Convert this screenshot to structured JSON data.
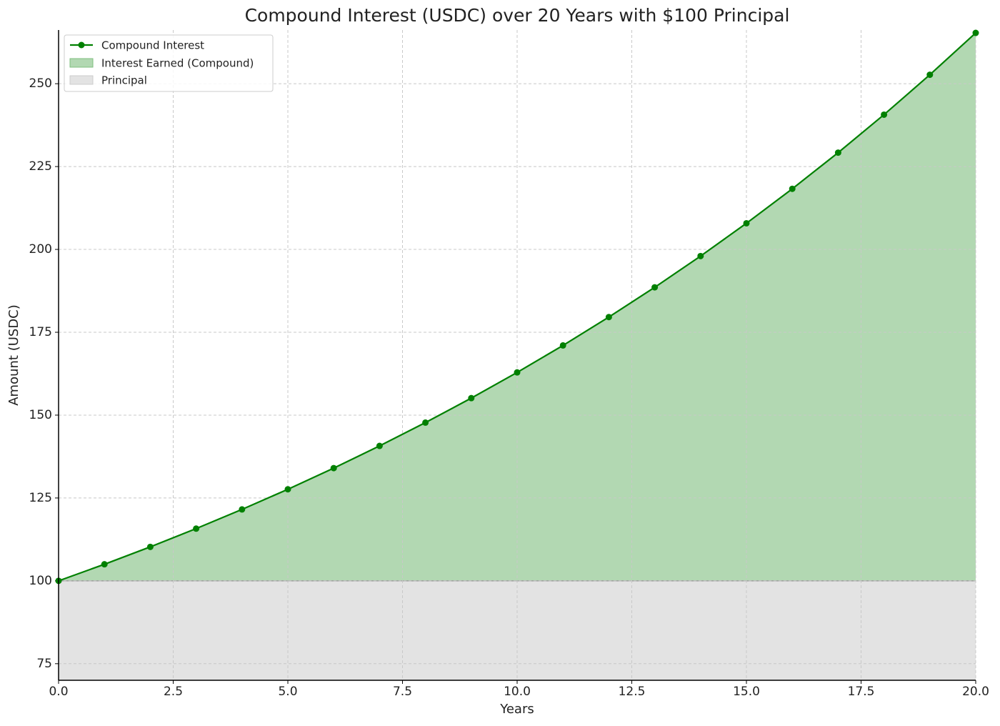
{
  "chart_data": {
    "type": "area-line",
    "title": "Compound Interest (USDC) over 20 Years with $100 Principal",
    "x_label": "Years",
    "y_label": "Amount (USDC)",
    "x": [
      0,
      1,
      2,
      3,
      4,
      5,
      6,
      7,
      8,
      9,
      10,
      11,
      12,
      13,
      14,
      15,
      16,
      17,
      18,
      19,
      20
    ],
    "series": [
      {
        "name": "Compound Interest",
        "color": "#008000",
        "values": [
          100,
          105,
          110.25,
          115.76,
          121.55,
          127.63,
          134.01,
          140.71,
          147.75,
          155.13,
          162.89,
          171.03,
          179.59,
          188.56,
          197.99,
          207.89,
          218.29,
          229.2,
          240.66,
          252.7,
          265.33
        ]
      }
    ],
    "areas": [
      {
        "name": "Interest Earned (Compound)",
        "color": "#b2d8b2"
      },
      {
        "name": "Principal",
        "color": "#e3e3e3",
        "value": 100
      }
    ],
    "xlim": [
      0,
      20
    ],
    "xticks": [
      {
        "value": 0,
        "label": "0.0"
      },
      2.5,
      {
        "value": 5,
        "label": "5.0"
      },
      7.5,
      {
        "value": 10,
        "label": "10.0"
      },
      12.5,
      {
        "value": 15,
        "label": "15.0"
      },
      17.5,
      {
        "value": 20,
        "label": "20.0"
      }
    ],
    "ylim": [
      70,
      266.2
    ],
    "yticks": [
      75,
      100,
      125,
      150,
      175,
      200,
      225,
      250
    ],
    "grid": true,
    "legend": "upper left"
  }
}
